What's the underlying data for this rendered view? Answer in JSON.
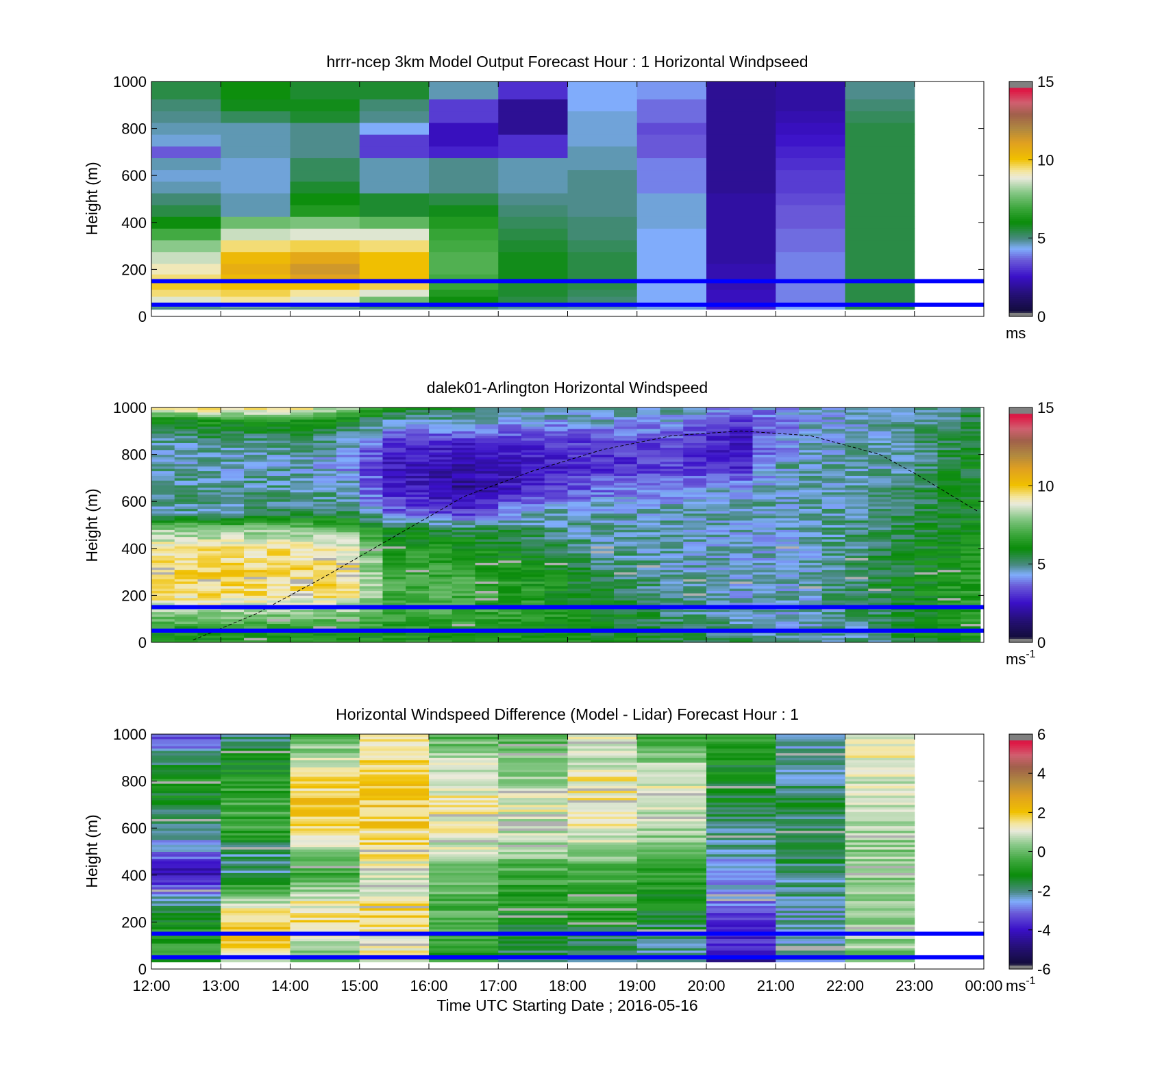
{
  "colorbar_stops": [
    {
      "p": 0.0,
      "c": "#808080"
    },
    {
      "p": 0.02,
      "c": "#808080"
    },
    {
      "p": 0.021,
      "c": "#120c3a"
    },
    {
      "p": 0.1,
      "c": "#26107a"
    },
    {
      "p": 0.17,
      "c": "#3a10c8"
    },
    {
      "p": 0.24,
      "c": "#6a5ad8"
    },
    {
      "p": 0.29,
      "c": "#80aefc"
    },
    {
      "p": 0.33,
      "c": "#4a8a84"
    },
    {
      "p": 0.4,
      "c": "#0a8c0a"
    },
    {
      "p": 0.46,
      "c": "#3aa63a"
    },
    {
      "p": 0.53,
      "c": "#88c888"
    },
    {
      "p": 0.59,
      "c": "#eaeadc"
    },
    {
      "p": 0.62,
      "c": "#f4e6a0"
    },
    {
      "p": 0.67,
      "c": "#f0c000"
    },
    {
      "p": 0.74,
      "c": "#e0a020"
    },
    {
      "p": 0.8,
      "c": "#b08840"
    },
    {
      "p": 0.86,
      "c": "#a0604a"
    },
    {
      "p": 0.91,
      "c": "#d06070"
    },
    {
      "p": 0.97,
      "c": "#e01040"
    },
    {
      "p": 0.979,
      "c": "#808080"
    },
    {
      "p": 1.0,
      "c": "#808080"
    }
  ],
  "chart_data": [
    {
      "type": "heatmap",
      "title": "hrrr-ncep 3km Model Output   Forecast Hour : 1 Horizontal Windpseed",
      "ylabel": "Height (m)",
      "ylim": [
        0,
        1000
      ],
      "yticks": [
        "0",
        "200",
        "400",
        "600",
        "800",
        "1000"
      ],
      "xticks": [
        "12:00",
        "13:00",
        "14:00",
        "15:00",
        "16:00",
        "17:00",
        "18:00",
        "19:00",
        "20:00",
        "21:00",
        "22:00",
        "23:00",
        "00:00"
      ],
      "colorbar": {
        "range": [
          0,
          15
        ],
        "ticks": [
          "0",
          "5",
          "10",
          "15"
        ],
        "unit": "ms"
      },
      "reference_lines_m": [
        150,
        50
      ],
      "x_columns_hours": [
        12,
        13,
        14,
        15,
        16,
        17,
        18,
        19,
        20,
        21,
        22
      ],
      "y_levels_m": [
        30,
        50,
        70,
        100,
        130,
        160,
        200,
        250,
        300,
        350,
        400,
        450,
        500,
        550,
        600,
        650,
        700,
        750,
        800,
        850,
        900,
        950,
        1000
      ],
      "values": [
        [
          4.8,
          7.6,
          8.8,
          9.6,
          10.0,
          9.6,
          9.2,
          8.6,
          8.0,
          7.0,
          6.0,
          5.4,
          5.0,
          4.6,
          4.4,
          4.6,
          3.4,
          4.4,
          4.6,
          4.8,
          5.0,
          5.4,
          5.4
        ],
        [
          4.8,
          8.4,
          9.4,
          9.8,
          10.2,
          10.4,
          10.8,
          10.4,
          9.6,
          8.6,
          7.6,
          4.6,
          4.6,
          4.4,
          4.4,
          4.4,
          4.6,
          4.6,
          4.6,
          5.2,
          5.8,
          6.0,
          6.0
        ],
        [
          4.8,
          7.8,
          8.8,
          9.4,
          10.2,
          11.2,
          11.6,
          11.0,
          9.8,
          8.8,
          7.8,
          6.4,
          6.0,
          5.6,
          5.2,
          5.2,
          4.8,
          4.8,
          4.8,
          5.6,
          5.8,
          5.6,
          5.6
        ],
        [
          4.8,
          6.6,
          7.6,
          8.8,
          9.8,
          10.2,
          10.2,
          10.2,
          9.6,
          8.8,
          7.4,
          5.6,
          5.6,
          4.6,
          4.6,
          4.6,
          3.0,
          3.0,
          4.2,
          4.8,
          5.0,
          5.6,
          5.6
        ],
        [
          4.8,
          5.6,
          6.0,
          6.4,
          6.8,
          7.0,
          7.2,
          7.2,
          7.0,
          6.8,
          6.4,
          5.8,
          5.4,
          4.8,
          4.8,
          4.8,
          2.6,
          2.2,
          2.2,
          3.0,
          3.0,
          4.6,
          4.6
        ],
        [
          4.6,
          5.2,
          5.4,
          5.6,
          5.6,
          5.8,
          5.8,
          5.8,
          5.6,
          5.4,
          5.2,
          5.0,
          4.8,
          4.6,
          4.6,
          4.6,
          2.8,
          2.8,
          1.6,
          1.6,
          1.6,
          2.8,
          2.8
        ],
        [
          4.6,
          4.8,
          5.0,
          5.2,
          5.4,
          5.4,
          5.4,
          5.4,
          5.2,
          5.0,
          5.0,
          4.8,
          4.8,
          4.8,
          4.8,
          4.6,
          4.6,
          4.4,
          4.4,
          4.4,
          4.2,
          4.2,
          4.2
        ],
        [
          4.4,
          4.2,
          4.2,
          4.2,
          4.2,
          4.2,
          4.2,
          4.2,
          4.2,
          4.2,
          4.4,
          4.4,
          4.4,
          3.8,
          3.8,
          3.8,
          3.4,
          3.4,
          3.2,
          3.6,
          3.6,
          4.0,
          4.0
        ],
        [
          2.6,
          2.4,
          2.2,
          2.2,
          2.0,
          2.0,
          2.0,
          1.8,
          1.8,
          1.8,
          1.8,
          1.8,
          1.8,
          1.6,
          1.6,
          1.6,
          1.6,
          1.6,
          1.6,
          1.6,
          1.6,
          1.6,
          1.6
        ],
        [
          4.2,
          4.0,
          3.8,
          3.8,
          3.8,
          3.8,
          3.8,
          3.8,
          3.6,
          3.6,
          3.4,
          3.4,
          3.2,
          3.0,
          3.0,
          2.8,
          2.6,
          2.4,
          2.2,
          2.0,
          1.8,
          1.8,
          1.8
        ],
        [
          5.4,
          5.4,
          5.4,
          5.4,
          5.4,
          5.4,
          5.4,
          5.4,
          5.4,
          5.4,
          5.4,
          5.4,
          5.4,
          5.4,
          5.4,
          5.4,
          5.4,
          5.4,
          5.4,
          5.2,
          5.0,
          4.8,
          4.8
        ]
      ]
    },
    {
      "type": "heatmap",
      "title": "dalek01-Arlington  Horizontal Windspeed",
      "ylabel": "Height (m)",
      "ylim": [
        0,
        1000
      ],
      "yticks": [
        "0",
        "200",
        "400",
        "600",
        "800",
        "1000"
      ],
      "colorbar": {
        "range": [
          0,
          15
        ],
        "ticks": [
          "0",
          "5",
          "10",
          "15"
        ],
        "unit": "ms",
        "unit_exp": "-1"
      },
      "reference_lines_m": [
        150,
        50
      ],
      "dashed_curve": {
        "x_hours": [
          12.6,
          13.5,
          14.5,
          15.5,
          16.5,
          17.5,
          18.5,
          19.5,
          20.5,
          21.5,
          22.5,
          23.0,
          23.9
        ],
        "y_m": [
          10,
          120,
          280,
          450,
          620,
          730,
          820,
          880,
          900,
          880,
          800,
          720,
          560
        ]
      },
      "x_range_hours": [
        12,
        23.95
      ],
      "y_range_m": [
        0,
        1000
      ],
      "time_anchor_hours": [
        12,
        13,
        14,
        14.8,
        15.5,
        16.5,
        17.5,
        18.5,
        19.5,
        20.5,
        21,
        21.5,
        22.5,
        23.5,
        24
      ],
      "height_anchors_m": [
        0,
        30,
        100,
        200,
        300,
        400,
        480,
        550,
        650,
        750,
        850,
        950,
        1000
      ],
      "profile_anchors": [
        [
          6.5,
          6.0,
          7.5,
          9.5,
          9.8,
          9.4,
          8.0,
          4.8,
          4.8,
          4.6,
          4.6,
          6.0,
          9.5
        ],
        [
          6.5,
          6.0,
          7.5,
          9.5,
          9.8,
          9.4,
          8.0,
          4.8,
          4.8,
          4.6,
          4.8,
          6.5,
          10.0
        ],
        [
          6.5,
          6.0,
          7.5,
          9.5,
          9.8,
          9.4,
          8.0,
          5.0,
          4.8,
          4.6,
          4.8,
          6.5,
          10.0
        ],
        [
          6.5,
          6.0,
          7.5,
          9.4,
          9.6,
          9.2,
          7.5,
          5.2,
          4.6,
          4.0,
          4.6,
          6.0,
          8.0
        ],
        [
          6.5,
          6.2,
          6.8,
          7.0,
          6.8,
          6.4,
          5.8,
          3.5,
          2.6,
          2.4,
          2.8,
          4.8,
          6.0
        ],
        [
          6.5,
          6.2,
          6.8,
          7.0,
          6.8,
          6.2,
          5.4,
          3.0,
          1.6,
          1.8,
          2.6,
          4.6,
          5.6
        ],
        [
          6.4,
          6.0,
          6.5,
          6.5,
          6.2,
          5.6,
          5.0,
          4.6,
          2.6,
          2.4,
          2.8,
          4.2,
          4.6
        ],
        [
          6.2,
          5.8,
          6.0,
          5.6,
          5.2,
          4.8,
          4.6,
          4.6,
          3.6,
          2.8,
          3.0,
          4.4,
          4.6
        ],
        [
          5.6,
          5.4,
          5.2,
          4.8,
          4.6,
          4.6,
          4.6,
          4.6,
          4.0,
          3.0,
          3.0,
          4.2,
          4.6
        ],
        [
          5.2,
          4.8,
          4.6,
          4.4,
          4.4,
          4.4,
          4.4,
          4.6,
          4.4,
          2.6,
          2.2,
          3.0,
          4.0
        ],
        [
          4.8,
          4.6,
          4.4,
          4.4,
          4.4,
          4.4,
          4.4,
          4.6,
          4.6,
          4.6,
          3.8,
          3.6,
          4.0
        ],
        [
          4.6,
          4.4,
          4.4,
          4.6,
          4.6,
          4.6,
          4.6,
          4.6,
          4.6,
          4.6,
          4.4,
          4.2,
          4.4
        ],
        [
          5.0,
          5.0,
          5.2,
          5.4,
          5.4,
          5.2,
          5.2,
          5.0,
          4.8,
          4.6,
          4.6,
          4.6,
          4.6
        ],
        [
          6.0,
          6.2,
          6.4,
          6.4,
          6.2,
          6.0,
          5.8,
          5.6,
          5.6,
          5.4,
          5.2,
          5.0,
          5.0
        ],
        [
          6.4,
          6.4,
          6.6,
          6.6,
          6.4,
          6.2,
          6.0,
          6.0,
          5.8,
          5.8,
          5.8,
          5.6,
          5.4
        ]
      ]
    },
    {
      "type": "heatmap",
      "title": "Horizontal Windspeed Difference (Model - Lidar) Forecast Hour : 1",
      "ylabel": "Height (m)",
      "xlabel": "Time UTC  Starting Date ; 2016-05-16",
      "ylim": [
        0,
        1000
      ],
      "yticks": [
        "0",
        "200",
        "400",
        "600",
        "800",
        "1000"
      ],
      "xticks": [
        "12:00",
        "13:00",
        "14:00",
        "15:00",
        "16:00",
        "17:00",
        "18:00",
        "19:00",
        "20:00",
        "21:00",
        "22:00",
        "23:00",
        "00:00"
      ],
      "colorbar": {
        "range": [
          -6,
          6
        ],
        "ticks": [
          "-6",
          "-4",
          "-2",
          "0",
          "2",
          "4",
          "6"
        ],
        "unit": "ms",
        "unit_exp": "-1"
      },
      "reference_lines_m": [
        150,
        50
      ],
      "x_columns_hours": [
        12,
        13,
        14,
        15,
        16,
        17,
        18,
        19,
        20,
        21,
        22
      ],
      "y_anchors_m": [
        0,
        50,
        100,
        150,
        200,
        300,
        400,
        500,
        600,
        700,
        800,
        900,
        1000
      ],
      "values": [
        [
          -1.0,
          -0.8,
          -0.5,
          -0.8,
          -1.2,
          -2.4,
          -4.5,
          -3.0,
          -2.2,
          -1.6,
          -1.0,
          -2.0,
          -3.5
        ],
        [
          1.2,
          1.0,
          1.8,
          2.6,
          1.6,
          0.8,
          -2.2,
          -2.0,
          -0.6,
          -0.4,
          -0.8,
          -1.2,
          -2.2
        ],
        [
          -0.2,
          0.0,
          0.5,
          1.4,
          1.6,
          1.2,
          -0.6,
          0.4,
          1.6,
          2.0,
          1.6,
          0.8,
          -0.4
        ],
        [
          1.2,
          1.4,
          1.2,
          1.6,
          1.8,
          1.4,
          1.0,
          1.6,
          1.8,
          2.0,
          2.2,
          1.8,
          1.4
        ],
        [
          -0.6,
          -0.8,
          -0.6,
          -0.4,
          -0.4,
          -0.2,
          0.0,
          1.0,
          1.2,
          1.4,
          1.0,
          0.8,
          -0.4
        ],
        [
          -2.0,
          -1.8,
          -1.6,
          -1.4,
          -1.2,
          -0.8,
          -0.6,
          0.4,
          0.8,
          1.2,
          0.6,
          0.2,
          -0.4
        ],
        [
          -2.0,
          -2.2,
          -2.0,
          -1.6,
          -1.2,
          -0.6,
          -0.4,
          0.6,
          1.2,
          1.6,
          1.4,
          1.0,
          1.0
        ],
        [
          -2.2,
          -2.4,
          -2.2,
          -2.0,
          -1.6,
          -1.2,
          -0.8,
          0.0,
          0.6,
          1.0,
          1.0,
          0.4,
          -0.4
        ],
        [
          -5.0,
          -4.8,
          -4.0,
          -3.8,
          -3.6,
          -2.8,
          -2.8,
          -2.4,
          -2.0,
          -1.6,
          -1.6,
          -1.0,
          -0.6
        ],
        [
          -2.4,
          -2.2,
          -2.2,
          -2.4,
          -2.4,
          -2.2,
          -2.0,
          -1.8,
          -1.8,
          -1.8,
          -2.0,
          -2.2,
          -2.2
        ],
        [
          0.0,
          0.2,
          0.4,
          0.6,
          0.6,
          0.6,
          0.4,
          0.4,
          0.6,
          0.8,
          1.0,
          1.2,
          1.4
        ]
      ]
    }
  ]
}
